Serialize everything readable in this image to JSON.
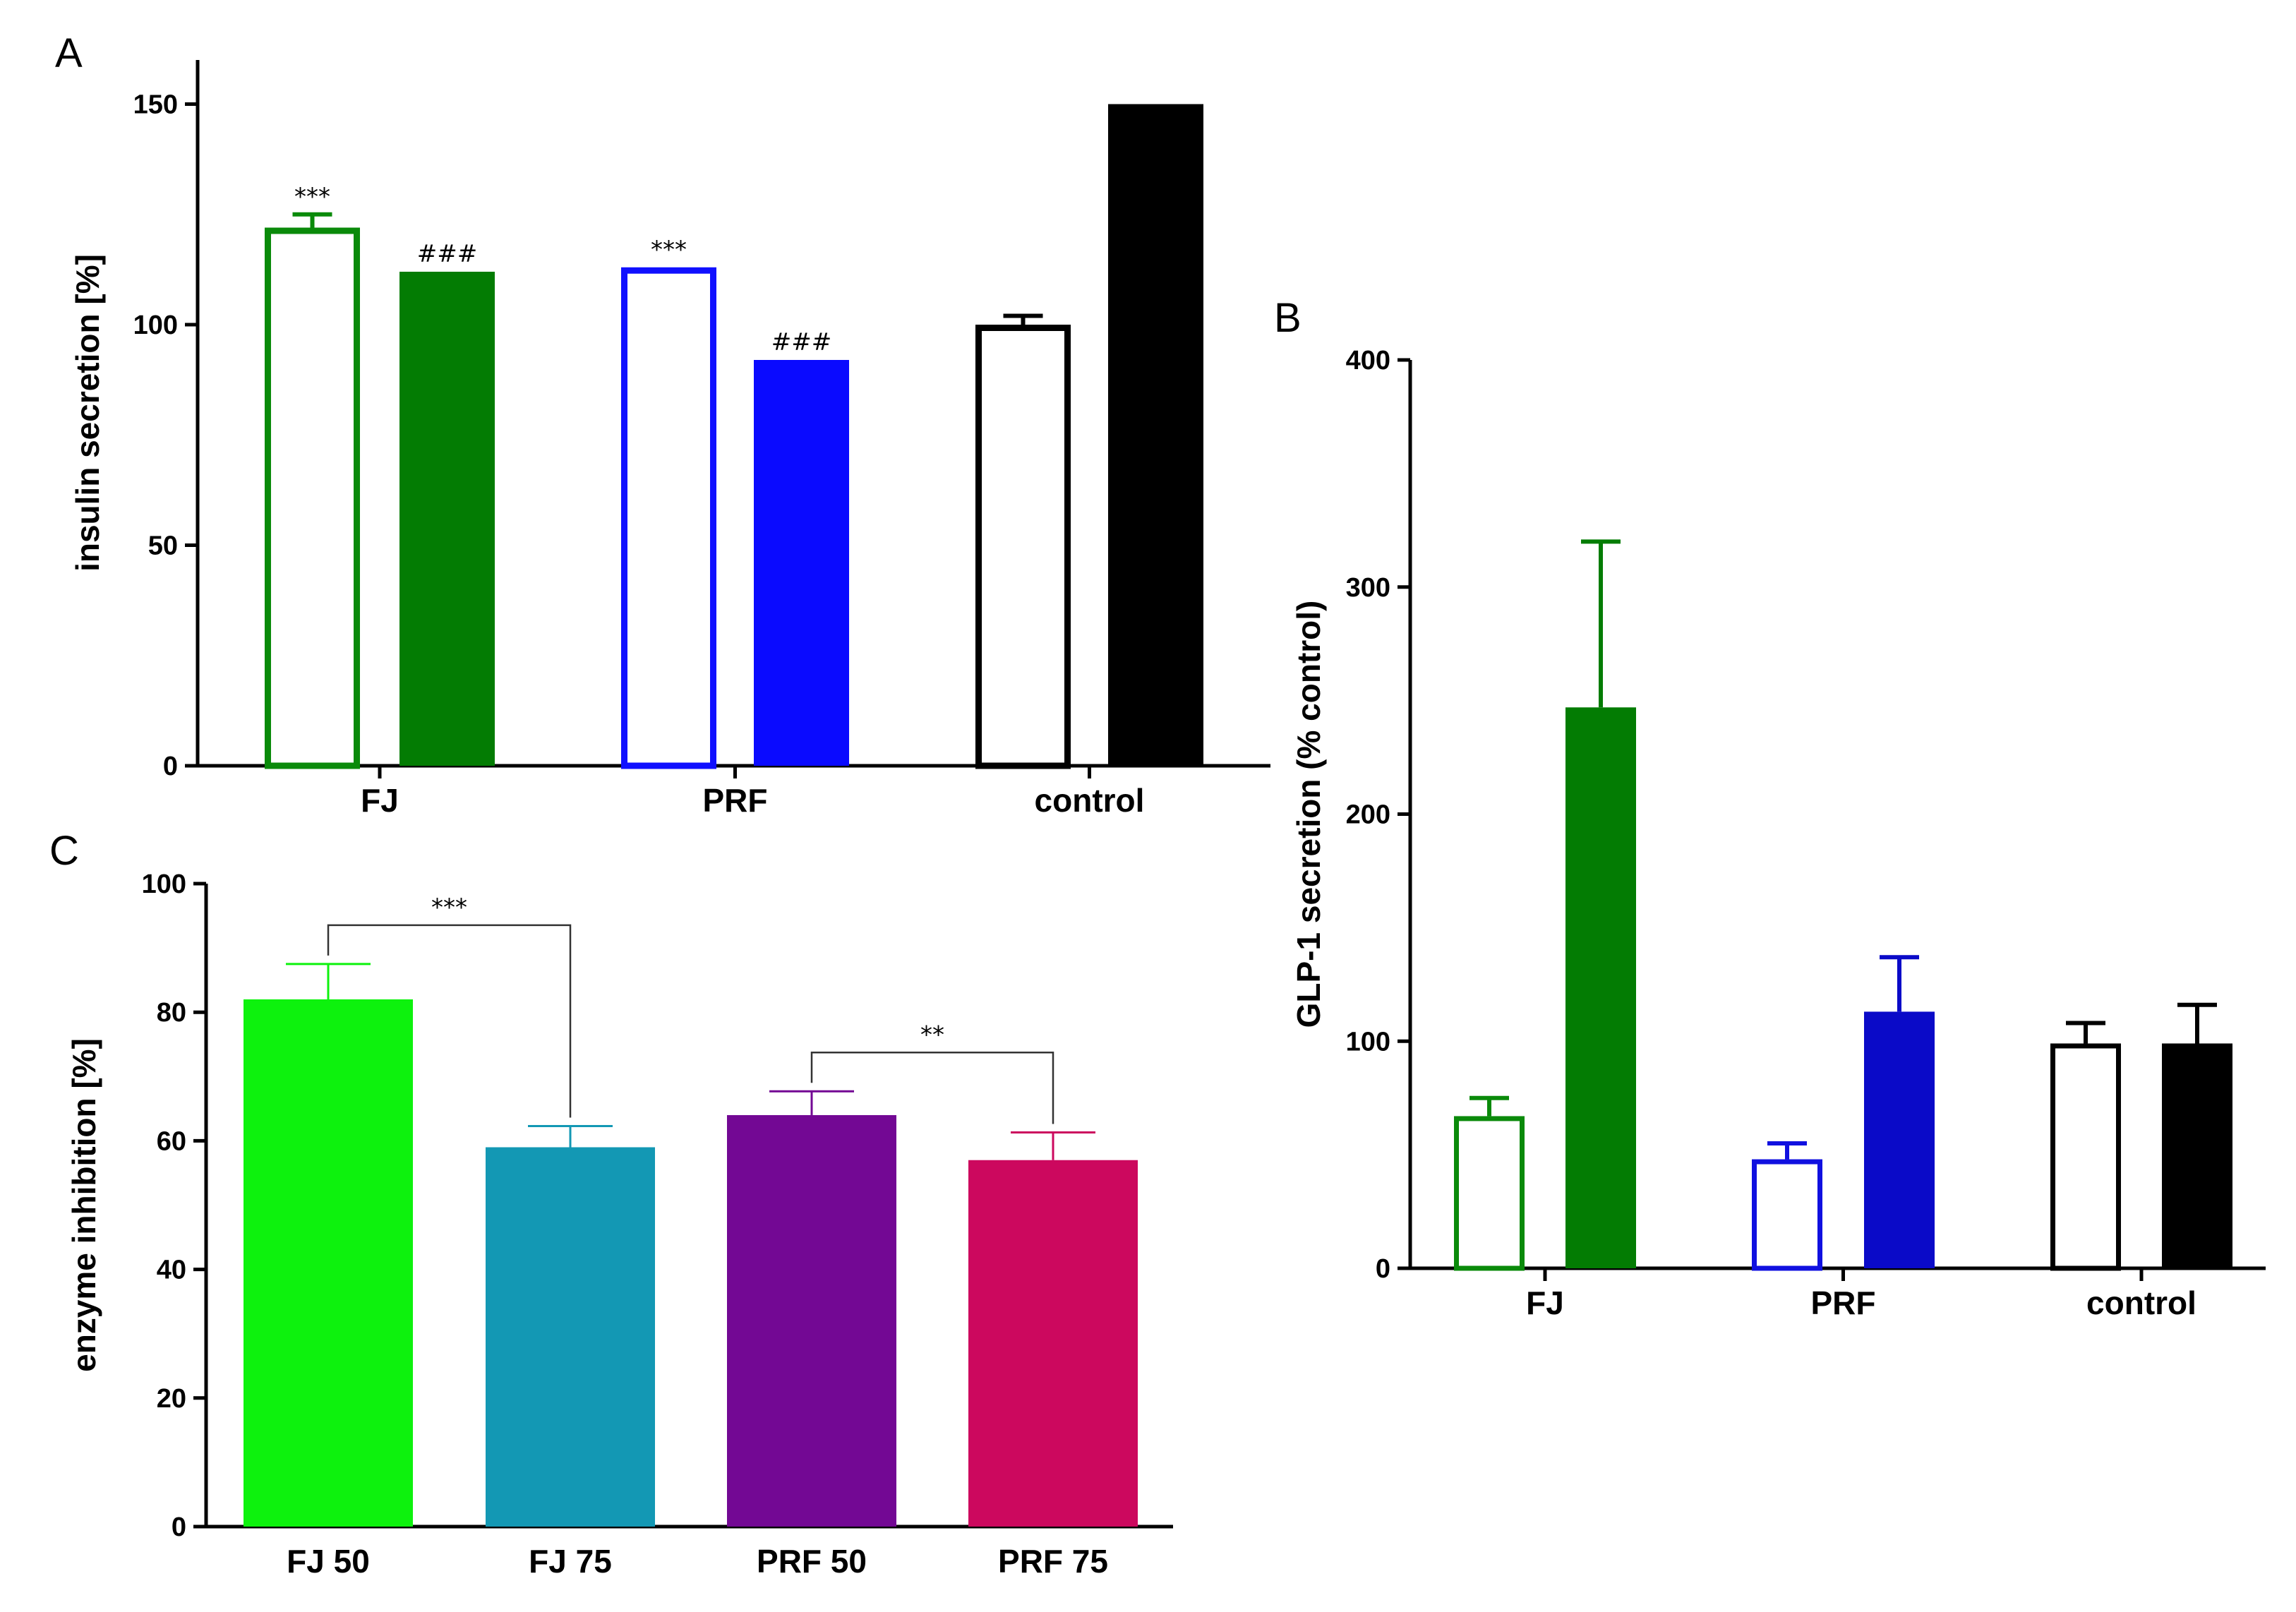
{
  "chart_data": [
    {
      "panel": "A",
      "type": "bar",
      "ylabel": "insulin secretion [%]",
      "xlabel": "",
      "ylim": [
        0,
        160
      ],
      "yticks": [
        0,
        50,
        100,
        150
      ],
      "categories": [
        "FJ",
        "PRF",
        "control"
      ],
      "bars": [
        {
          "group": "FJ",
          "value": 122,
          "error": 3,
          "fill": "#ffffff",
          "stroke": "#0a8a0a",
          "annotation": "***"
        },
        {
          "group": "FJ",
          "value": 112,
          "error": 0,
          "fill": "#037c03",
          "stroke": "#037c03",
          "annotation": "###"
        },
        {
          "group": "PRF",
          "value": 113,
          "error": 0,
          "fill": "#ffffff",
          "stroke": "#1010ff",
          "annotation": "***"
        },
        {
          "group": "PRF",
          "value": 92,
          "error": 0,
          "fill": "#0a0aff",
          "stroke": "#0a0aff",
          "annotation": "###"
        },
        {
          "group": "control",
          "value": 100,
          "error": 2,
          "fill": "#ffffff",
          "stroke": "#000000",
          "annotation": ""
        },
        {
          "group": "control",
          "value": 150,
          "error": 0,
          "fill": "#000000",
          "stroke": "#000000",
          "annotation": ""
        }
      ]
    },
    {
      "panel": "B",
      "type": "bar",
      "ylabel": "GLP-1 secretion (% control)",
      "xlabel": "",
      "ylim": [
        0,
        400
      ],
      "yticks": [
        0,
        100,
        200,
        300,
        400
      ],
      "categories": [
        "FJ",
        "PRF",
        "control"
      ],
      "bars": [
        {
          "group": "FJ",
          "value": 67,
          "error": 8,
          "fill": "#ffffff",
          "stroke": "#0a8a0a"
        },
        {
          "group": "FJ",
          "value": 247,
          "error": 73,
          "fill": "#037c03",
          "stroke": "#037c03"
        },
        {
          "group": "PRF",
          "value": 48,
          "error": 7,
          "fill": "#ffffff",
          "stroke": "#1010e0"
        },
        {
          "group": "PRF",
          "value": 113,
          "error": 24,
          "fill": "#0a0ac8",
          "stroke": "#0a0ac8"
        },
        {
          "group": "control",
          "value": 99,
          "error": 9,
          "fill": "#ffffff",
          "stroke": "#000000"
        },
        {
          "group": "control",
          "value": 99,
          "error": 17,
          "fill": "#000000",
          "stroke": "#000000"
        }
      ]
    },
    {
      "panel": "C",
      "type": "bar",
      "ylabel": "enzyme inhibition [%]",
      "xlabel": "",
      "ylim": [
        0,
        100
      ],
      "yticks": [
        0,
        20,
        40,
        60,
        80,
        100
      ],
      "categories": [
        "FJ 50",
        "FJ 75",
        "PRF 50",
        "PRF 75"
      ],
      "bars": [
        {
          "group": "FJ 50",
          "value": 82,
          "error": 5.5,
          "fill": "#0df20d",
          "stroke": "#0df20d"
        },
        {
          "group": "FJ 75",
          "value": 59,
          "error": 3.3,
          "fill": "#1398b4",
          "stroke": "#1398b4"
        },
        {
          "group": "PRF 50",
          "value": 64,
          "error": 3.7,
          "fill": "#730894",
          "stroke": "#730894"
        },
        {
          "group": "PRF 75",
          "value": 57,
          "error": 4.3,
          "fill": "#cc085e",
          "stroke": "#cc085e"
        }
      ],
      "brackets": [
        {
          "from": "FJ 50",
          "to": "FJ 75",
          "label": "***"
        },
        {
          "from": "PRF 50",
          "to": "PRF 75",
          "label": "**"
        }
      ]
    }
  ]
}
